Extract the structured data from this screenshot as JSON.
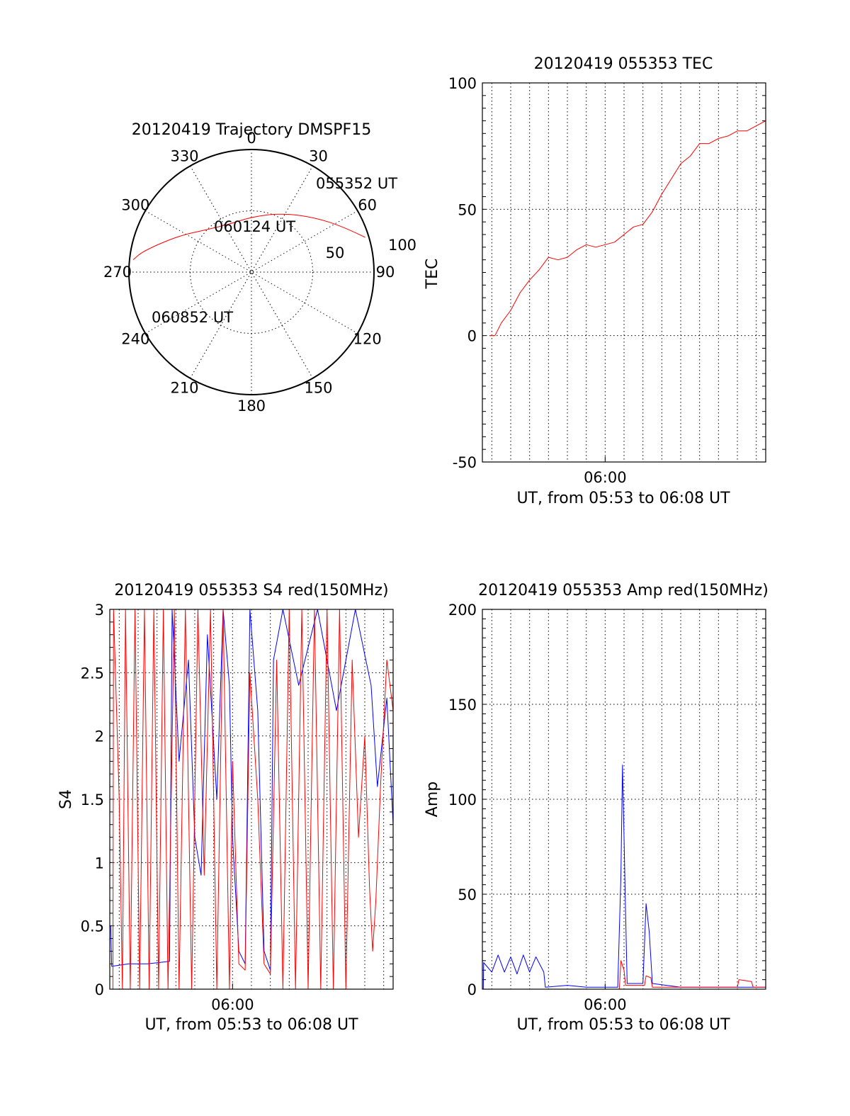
{
  "chart_data": [
    {
      "type": "polar",
      "title": "20120419 Trajectory DMSPF15",
      "angle_labels": [
        "0",
        "30",
        "60",
        "90",
        "120",
        "150",
        "180",
        "210",
        "240",
        "270",
        "300",
        "330"
      ],
      "radial_ticks": [
        50,
        100
      ],
      "radial_range": [
        0,
        100
      ],
      "grid": true,
      "colors": {
        "trajectory": "#ff0000"
      },
      "trajectory": [
        {
          "az": 73,
          "r": 97
        },
        {
          "az": 64,
          "r": 84
        },
        {
          "az": 49,
          "r": 68
        },
        {
          "az": 27,
          "r": 54
        },
        {
          "az": 0,
          "r": 45
        },
        {
          "az": -24,
          "r": 43
        },
        {
          "az": -46,
          "r": 50
        },
        {
          "az": -64,
          "r": 67
        },
        {
          "az": -79,
          "r": 90
        },
        {
          "az": -84,
          "r": 97
        }
      ],
      "annotations": [
        {
          "text": "055352 UT",
          "az": 73,
          "r": 97
        },
        {
          "text": "060124 UT",
          "az": 0,
          "r": 45
        },
        {
          "text": "060852 UT",
          "az": -84,
          "r": 97
        }
      ]
    },
    {
      "type": "line",
      "title": "20120419 055353 TEC",
      "ylabel": "TEC",
      "xlabel": "UT, from 05:53 to 06:08 UT",
      "xlim": [
        "05:53:30",
        "06:08:30"
      ],
      "ylim": [
        -50,
        100
      ],
      "yticks": [
        "-50",
        "0",
        "50",
        "100"
      ],
      "xticks": [
        {
          "t": "06:00",
          "label": "06:00"
        }
      ],
      "grid": true,
      "series": [
        {
          "color": "#ff0000",
          "points": [
            [
              "05:53:53",
              0
            ],
            [
              "05:54:10",
              0
            ],
            [
              "05:54:30",
              5
            ],
            [
              "05:55:00",
              10
            ],
            [
              "05:55:30",
              17
            ],
            [
              "05:56:00",
              22
            ],
            [
              "05:56:30",
              26
            ],
            [
              "05:57:00",
              31
            ],
            [
              "05:57:30",
              30
            ],
            [
              "05:58:00",
              31
            ],
            [
              "05:58:30",
              34
            ],
            [
              "05:59:00",
              36
            ],
            [
              "05:59:30",
              35
            ],
            [
              "06:00:00",
              36
            ],
            [
              "06:00:30",
              37
            ],
            [
              "06:01:00",
              40
            ],
            [
              "06:01:30",
              43
            ],
            [
              "06:02:00",
              44
            ],
            [
              "06:02:30",
              49
            ],
            [
              "06:03:00",
              56
            ],
            [
              "06:03:30",
              62
            ],
            [
              "06:04:00",
              68
            ],
            [
              "06:04:30",
              71
            ],
            [
              "06:05:00",
              76
            ],
            [
              "06:05:30",
              76
            ],
            [
              "06:06:00",
              78
            ],
            [
              "06:06:30",
              79
            ],
            [
              "06:07:00",
              81
            ],
            [
              "06:07:30",
              81
            ],
            [
              "06:08:00",
              83
            ],
            [
              "06:08:30",
              85
            ]
          ]
        }
      ]
    },
    {
      "type": "line",
      "title": "20120419 055353 S4 red(150MHz)",
      "ylabel": "S4",
      "xlabel": "UT, from 05:53 to 06:08 UT",
      "xlim": [
        "05:53:30",
        "06:08:30"
      ],
      "ylim": [
        0,
        3
      ],
      "yticks": [
        "0",
        "0.5",
        "1",
        "1.5",
        "2",
        "2.5",
        "3"
      ],
      "xticks": [
        {
          "t": "06:00",
          "label": "06:00"
        }
      ],
      "grid": true,
      "series": [
        {
          "color": "#0000ff",
          "points": [
            [
              "05:53:33",
              0.5
            ],
            [
              "05:53:36",
              0.18
            ],
            [
              "05:54:30",
              0.2
            ],
            [
              "05:55:30",
              0.2
            ],
            [
              "05:56:40",
              0.22
            ],
            [
              "05:56:48",
              3
            ],
            [
              "05:57:10",
              1.8
            ],
            [
              "05:57:40",
              2.6
            ],
            [
              "05:58:00",
              1.2
            ],
            [
              "05:58:20",
              0.9
            ],
            [
              "05:58:40",
              2.8
            ],
            [
              "05:59:10",
              1.5
            ],
            [
              "05:59:30",
              3
            ],
            [
              "05:59:50",
              2.4
            ],
            [
              "06:00:00",
              1.2
            ],
            [
              "06:00:20",
              0.3
            ],
            [
              "06:00:40",
              0.2
            ],
            [
              "06:00:55",
              3
            ],
            [
              "06:01:20",
              2.2
            ],
            [
              "06:01:40",
              0.3
            ],
            [
              "06:02:00",
              0.15
            ],
            [
              "06:02:10",
              2.6
            ],
            [
              "06:02:40",
              3
            ],
            [
              "06:03:30",
              2.4
            ],
            [
              "06:04:30",
              3
            ],
            [
              "06:05:30",
              2.2
            ],
            [
              "06:06:30",
              3
            ],
            [
              "06:07:20",
              2.4
            ],
            [
              "06:07:40",
              1.6
            ],
            [
              "06:08:10",
              2.3
            ],
            [
              "06:08:30",
              1.3
            ]
          ]
        },
        {
          "color": "#ff0000",
          "points": [
            [
              "05:53:40",
              0
            ],
            [
              "05:53:42",
              3
            ],
            [
              "05:54:00",
              1.5
            ],
            [
              "05:54:10",
              0
            ],
            [
              "05:54:20",
              3
            ],
            [
              "05:54:35",
              0
            ],
            [
              "05:54:50",
              3
            ],
            [
              "05:55:05",
              0
            ],
            [
              "05:55:20",
              3
            ],
            [
              "05:55:35",
              0
            ],
            [
              "05:55:50",
              3
            ],
            [
              "05:56:05",
              0
            ],
            [
              "05:56:20",
              3
            ],
            [
              "05:56:35",
              0
            ],
            [
              "05:56:55",
              3
            ],
            [
              "05:57:10",
              0
            ],
            [
              "05:57:30",
              3
            ],
            [
              "05:57:50",
              0
            ],
            [
              "05:58:10",
              3
            ],
            [
              "05:58:30",
              0.9
            ],
            [
              "05:58:50",
              3
            ],
            [
              "05:59:10",
              0
            ],
            [
              "05:59:30",
              3
            ],
            [
              "05:59:50",
              0
            ],
            [
              "06:00:00",
              1.8
            ],
            [
              "06:00:20",
              0.2
            ],
            [
              "06:00:40",
              0.15
            ],
            [
              "06:00:55",
              2.5
            ],
            [
              "06:01:20",
              1.5
            ],
            [
              "06:01:40",
              0.2
            ],
            [
              "06:02:00",
              0.12
            ],
            [
              "06:02:20",
              2.6
            ],
            [
              "06:02:40",
              0
            ],
            [
              "06:03:00",
              3
            ],
            [
              "06:03:20",
              0
            ],
            [
              "06:03:40",
              3
            ],
            [
              "06:04:00",
              0
            ],
            [
              "06:04:20",
              3
            ],
            [
              "06:04:40",
              0
            ],
            [
              "06:05:00",
              3
            ],
            [
              "06:05:20",
              0
            ],
            [
              "06:05:40",
              3
            ],
            [
              "06:06:00",
              0
            ],
            [
              "06:06:20",
              2.6
            ],
            [
              "06:06:40",
              1.2
            ],
            [
              "06:07:00",
              2.0
            ],
            [
              "06:07:15",
              0.8
            ],
            [
              "06:07:25",
              0.3
            ],
            [
              "06:07:35",
              0.7
            ],
            [
              "06:07:50",
              1.6
            ],
            [
              "06:08:10",
              2.6
            ],
            [
              "06:08:30",
              2.2
            ]
          ]
        }
      ]
    },
    {
      "type": "line",
      "title": "20120419 055353 Amp red(150MHz)",
      "ylabel": "Amp",
      "xlabel": "UT, from 05:53 to 06:08 UT",
      "xlim": [
        "05:53:30",
        "06:08:30"
      ],
      "ylim": [
        0,
        200
      ],
      "yticks": [
        "0",
        "50",
        "100",
        "150",
        "200"
      ],
      "xticks": [
        {
          "t": "06:00",
          "label": "06:00"
        }
      ],
      "grid": true,
      "series": [
        {
          "color": "#0000ff",
          "points": [
            [
              "05:53:33",
              0
            ],
            [
              "05:53:34",
              14
            ],
            [
              "05:54:00",
              9
            ],
            [
              "05:54:20",
              18
            ],
            [
              "05:54:40",
              9
            ],
            [
              "05:55:00",
              17
            ],
            [
              "05:55:20",
              8
            ],
            [
              "05:55:40",
              18
            ],
            [
              "05:56:00",
              9
            ],
            [
              "05:56:20",
              17
            ],
            [
              "05:56:45",
              9
            ],
            [
              "05:56:50",
              1
            ],
            [
              "05:58:00",
              2
            ],
            [
              "05:59:00",
              1
            ],
            [
              "06:00:00",
              1
            ],
            [
              "06:00:40",
              1
            ],
            [
              "06:00:50",
              60
            ],
            [
              "06:00:55",
              118
            ],
            [
              "06:01:00",
              80
            ],
            [
              "06:01:05",
              40
            ],
            [
              "06:01:10",
              3
            ],
            [
              "06:02:00",
              3
            ],
            [
              "06:02:10",
              45
            ],
            [
              "06:02:20",
              30
            ],
            [
              "06:02:30",
              3
            ],
            [
              "06:04:00",
              1
            ],
            [
              "06:06:00",
              1
            ],
            [
              "06:08:30",
              1
            ]
          ]
        },
        {
          "color": "#ff0000",
          "points": [
            [
              "05:53:33",
              0
            ],
            [
              "05:56:50",
              0
            ],
            [
              "06:00:45",
              0
            ],
            [
              "06:00:50",
              15
            ],
            [
              "06:01:00",
              10
            ],
            [
              "06:01:05",
              2
            ],
            [
              "06:02:05",
              2
            ],
            [
              "06:02:10",
              7
            ],
            [
              "06:02:25",
              6
            ],
            [
              "06:02:30",
              1
            ],
            [
              "06:07:00",
              1
            ],
            [
              "06:07:05",
              5
            ],
            [
              "06:07:45",
              4
            ],
            [
              "06:07:50",
              1
            ],
            [
              "06:08:30",
              1
            ]
          ]
        }
      ]
    }
  ]
}
